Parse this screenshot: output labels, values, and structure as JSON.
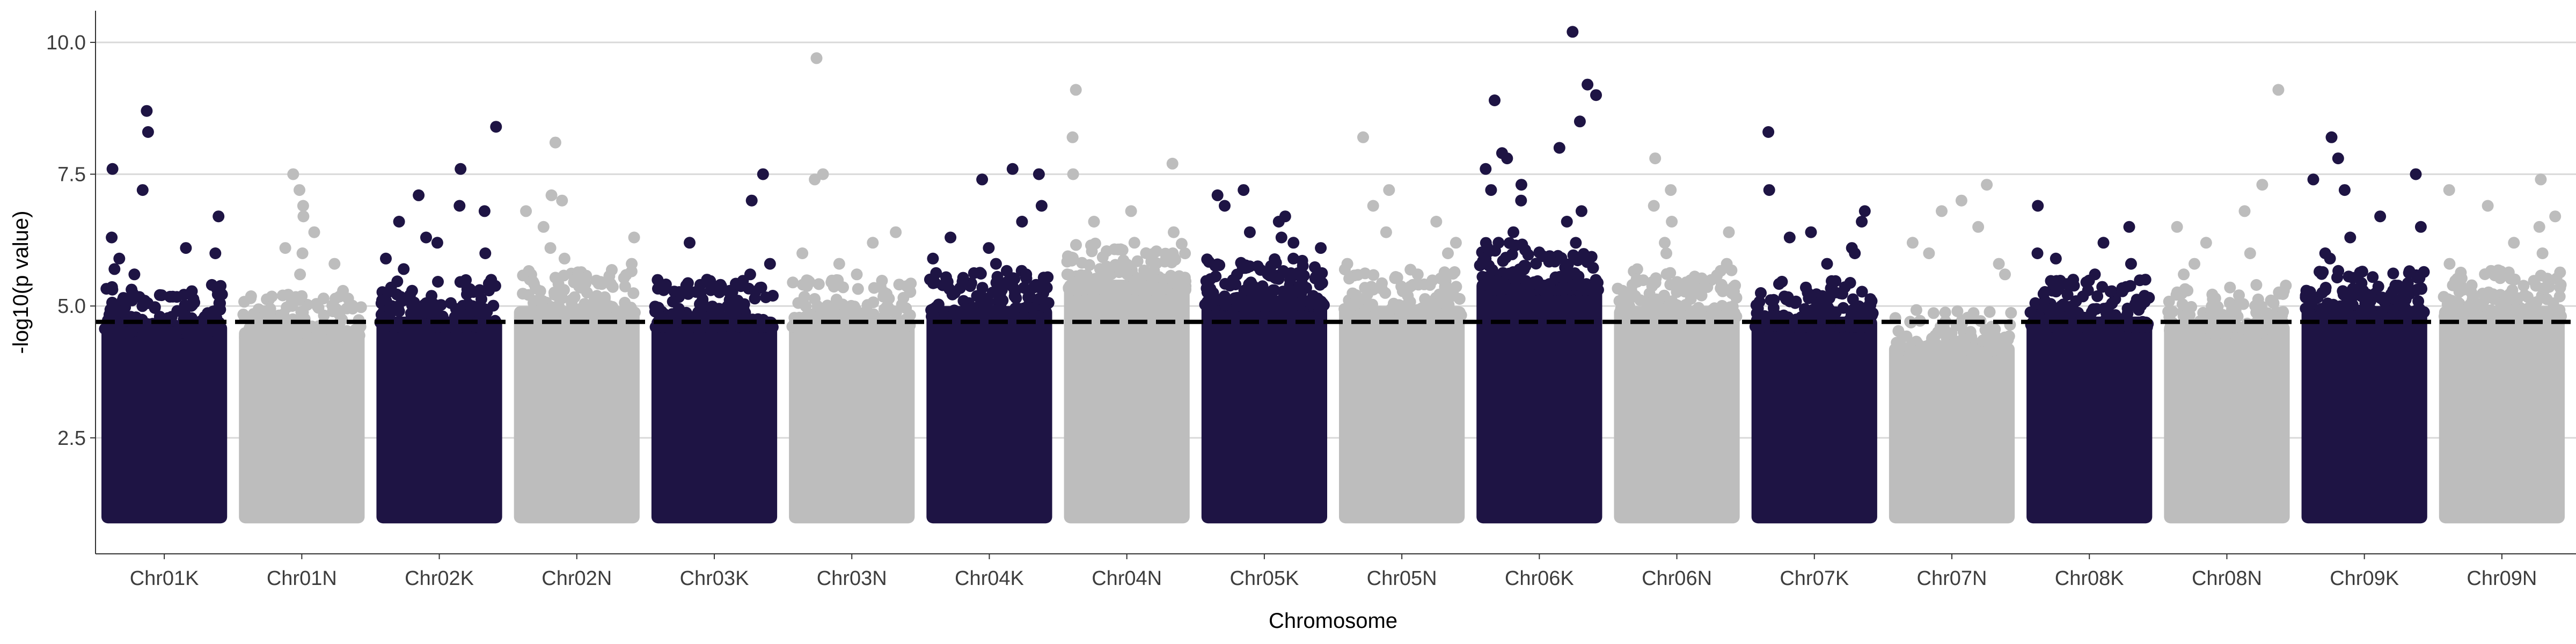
{
  "chart_data": {
    "type": "scatter",
    "title": "",
    "xlabel": "Chromosome",
    "ylabel": "-log10(p value)",
    "categories": [
      "Chr01K",
      "Chr01N",
      "Chr02K",
      "Chr02N",
      "Chr03K",
      "Chr03N",
      "Chr04K",
      "Chr04N",
      "Chr05K",
      "Chr05N",
      "Chr06K",
      "Chr06N",
      "Chr07K",
      "Chr07N",
      "Chr08K",
      "Chr08N",
      "Chr09K",
      "Chr09N"
    ],
    "y_ticks": [
      2.5,
      5.0,
      7.5,
      10.0
    ],
    "y_tick_labels": [
      "2.5",
      "5.0",
      "7.5",
      "10.0"
    ],
    "ylim": [
      0.3,
      10.6
    ],
    "y_floor": 1.0,
    "threshold": 4.7,
    "grid": "horizontal major only",
    "legend": "none",
    "colors": {
      "K": "#1e1444",
      "N": "#bdbdbd",
      "threshold": "#000000",
      "grid": "#d9d9d9",
      "axis": "#333333"
    },
    "series": [
      {
        "chromosome": "Chr01K",
        "color": "K",
        "dense_top": 4.7,
        "peaks": [
          8.7,
          8.3,
          7.6,
          7.2,
          6.7,
          6.3,
          6.1,
          6.0,
          5.9,
          5.7,
          5.6,
          5.4
        ]
      },
      {
        "chromosome": "Chr01N",
        "color": "N",
        "dense_top": 4.6,
        "peaks": [
          7.5,
          7.2,
          6.9,
          6.7,
          6.4,
          6.1,
          6.0,
          5.8,
          5.6
        ]
      },
      {
        "chromosome": "Chr02K",
        "color": "K",
        "dense_top": 4.8,
        "peaks": [
          8.4,
          7.6,
          7.1,
          6.9,
          6.8,
          6.6,
          6.3,
          6.2,
          6.0,
          5.9,
          5.7
        ]
      },
      {
        "chromosome": "Chr02N",
        "color": "N",
        "dense_top": 5.0,
        "peaks": [
          8.1,
          7.1,
          7.0,
          6.8,
          6.5,
          6.3,
          6.1,
          5.9,
          5.8
        ]
      },
      {
        "chromosome": "Chr03K",
        "color": "K",
        "dense_top": 4.8,
        "peaks": [
          7.5,
          7.0,
          6.2,
          5.8,
          5.6,
          5.5,
          5.3
        ]
      },
      {
        "chromosome": "Chr03N",
        "color": "N",
        "dense_top": 4.8,
        "peaks": [
          9.7,
          7.5,
          7.4,
          6.4,
          6.2,
          6.0,
          5.8,
          5.6
        ]
      },
      {
        "chromosome": "Chr04K",
        "color": "K",
        "dense_top": 5.0,
        "peaks": [
          7.6,
          7.5,
          7.4,
          6.9,
          6.6,
          6.3,
          6.1,
          5.9,
          5.8,
          5.6
        ]
      },
      {
        "chromosome": "Chr04N",
        "color": "N",
        "dense_top": 5.5,
        "peaks": [
          9.1,
          8.2,
          7.7,
          7.5,
          6.8,
          6.6,
          6.4,
          6.2,
          6.0
        ]
      },
      {
        "chromosome": "Chr05K",
        "color": "K",
        "dense_top": 5.2,
        "peaks": [
          7.2,
          7.1,
          6.9,
          6.7,
          6.6,
          6.4,
          6.3,
          6.2,
          6.1,
          5.9
        ]
      },
      {
        "chromosome": "Chr05N",
        "color": "N",
        "dense_top": 5.0,
        "peaks": [
          8.2,
          7.2,
          6.9,
          6.6,
          6.4,
          6.2,
          6.0,
          5.8
        ]
      },
      {
        "chromosome": "Chr06K",
        "color": "K",
        "dense_top": 5.5,
        "peaks": [
          10.2,
          9.2,
          9.0,
          8.9,
          8.5,
          8.0,
          7.9,
          7.8,
          7.6,
          7.3,
          7.2,
          7.0,
          6.8,
          6.6,
          6.4,
          6.2
        ]
      },
      {
        "chromosome": "Chr06N",
        "color": "N",
        "dense_top": 5.0,
        "peaks": [
          7.8,
          7.2,
          6.9,
          6.6,
          6.4,
          6.2,
          6.0,
          5.8
        ]
      },
      {
        "chromosome": "Chr07K",
        "color": "K",
        "dense_top": 4.8,
        "peaks": [
          8.3,
          7.2,
          6.8,
          6.6,
          6.4,
          6.3,
          6.1,
          6.0,
          5.8
        ]
      },
      {
        "chromosome": "Chr07N",
        "color": "N",
        "dense_top": 4.3,
        "peaks": [
          7.3,
          7.0,
          6.8,
          6.5,
          6.2,
          6.0,
          5.8,
          5.6
        ]
      },
      {
        "chromosome": "Chr08K",
        "color": "K",
        "dense_top": 4.8,
        "peaks": [
          6.9,
          6.5,
          6.2,
          6.0,
          5.9,
          5.8,
          5.6,
          5.5
        ]
      },
      {
        "chromosome": "Chr08N",
        "color": "N",
        "dense_top": 4.7,
        "peaks": [
          9.1,
          7.3,
          6.8,
          6.5,
          6.2,
          6.0,
          5.8,
          5.6
        ]
      },
      {
        "chromosome": "Chr09K",
        "color": "K",
        "dense_top": 5.0,
        "peaks": [
          8.2,
          7.8,
          7.5,
          7.4,
          7.2,
          6.7,
          6.5,
          6.3,
          6.0,
          5.9
        ]
      },
      {
        "chromosome": "Chr09N",
        "color": "N",
        "dense_top": 5.0,
        "peaks": [
          7.4,
          7.2,
          6.9,
          6.7,
          6.5,
          6.2,
          6.0,
          5.8
        ]
      }
    ]
  }
}
